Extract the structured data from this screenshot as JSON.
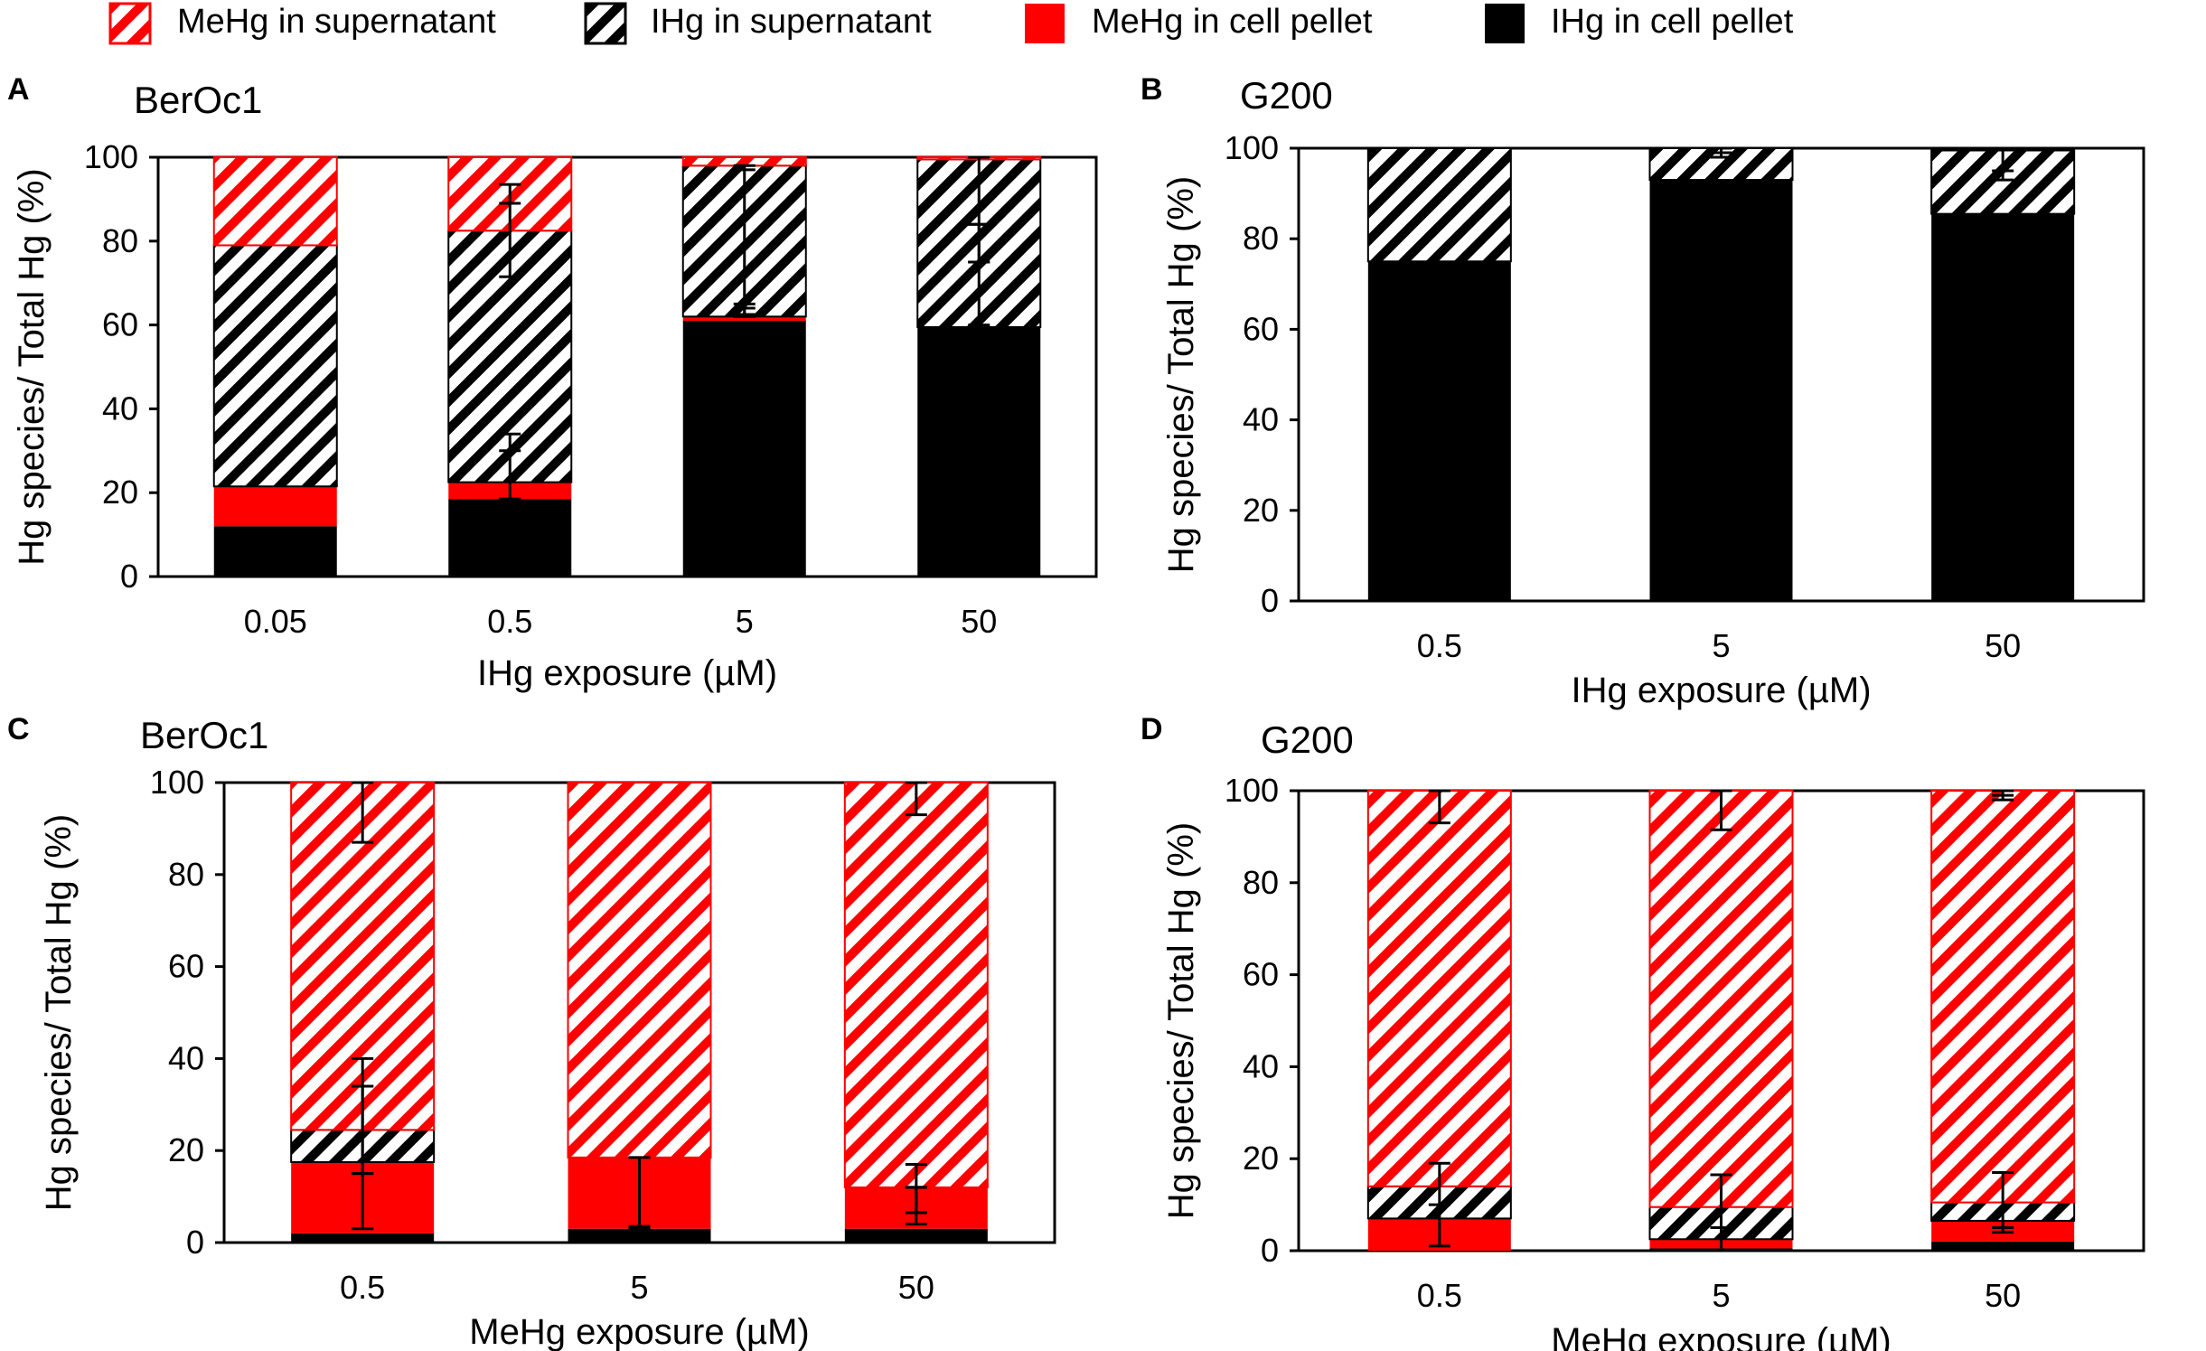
{
  "legend": [
    {
      "label": "MeHg in supernatant",
      "pattern": "red-hatch"
    },
    {
      "label": "IHg in supernatant",
      "pattern": "black-hatch"
    },
    {
      "label": "MeHg in cell pellet",
      "pattern": "solid-red"
    },
    {
      "label": "IHg in cell pellet",
      "pattern": "solid-black"
    }
  ],
  "colors": {
    "red": "#ff0000",
    "black": "#000000",
    "white": "#ffffff"
  },
  "chart_data": [
    {
      "panel": "A",
      "type": "bar",
      "stacked": true,
      "title": "BerOc1",
      "xlabel": "IHg exposure (µM)",
      "ylabel": "Hg species/ Total Hg (%)",
      "ylim": [
        0,
        100
      ],
      "yticks": [
        "0",
        "20",
        "40",
        "60",
        "80",
        "100"
      ],
      "categories": [
        "0.05",
        "0.5",
        "5",
        "50"
      ],
      "series": [
        {
          "name": "IHg in cell pellet",
          "values": [
            12,
            18.5,
            61,
            59.5
          ]
        },
        {
          "name": "MeHg in cell pellet",
          "values": [
            9.5,
            4,
            1,
            0
          ]
        },
        {
          "name": "IHg in supernatant",
          "values": [
            57.5,
            60,
            36,
            40
          ]
        },
        {
          "name": "MeHg in supernatant",
          "values": [
            21,
            17.5,
            2,
            0.5
          ]
        }
      ],
      "error_bars": [
        {
          "category": "0.5",
          "center": 30,
          "low": 18.5,
          "high": 34
        },
        {
          "category": "0.5",
          "center": 89,
          "low": 71.5,
          "high": 93.5
        },
        {
          "category": "5",
          "center": 64,
          "low": 62,
          "high": 65
        },
        {
          "category": "5",
          "center": 97,
          "low": 62.5,
          "high": 98
        },
        {
          "category": "50",
          "center": 75,
          "low": 60,
          "high": 84
        },
        {
          "category": "50",
          "center": 84,
          "low": 75,
          "high": 100
        }
      ]
    },
    {
      "panel": "B",
      "type": "bar",
      "stacked": true,
      "title": "G200",
      "xlabel": "IHg exposure (µM)",
      "ylabel": "Hg species/ Total Hg (%)",
      "ylim": [
        0,
        100
      ],
      "yticks": [
        "0",
        "20",
        "40",
        "60",
        "80",
        "100"
      ],
      "categories": [
        "0.5",
        "5",
        "50"
      ],
      "series": [
        {
          "name": "IHg in cell pellet",
          "values": [
            75,
            93,
            85.5
          ]
        },
        {
          "name": "MeHg in cell pellet",
          "values": [
            0,
            0,
            0
          ]
        },
        {
          "name": "IHg in supernatant",
          "values": [
            25,
            7,
            14
          ]
        },
        {
          "name": "MeHg in supernatant",
          "values": [
            0,
            0,
            0
          ]
        }
      ],
      "error_bars": [
        {
          "category": "5",
          "center": 99,
          "low": 98,
          "high": 100
        },
        {
          "category": "50",
          "center": 95,
          "low": 93,
          "high": 100
        }
      ]
    },
    {
      "panel": "C",
      "type": "bar",
      "stacked": true,
      "title": "BerOc1",
      "xlabel": "MeHg exposure (µM)",
      "ylabel": "Hg species/ Total Hg (%)",
      "ylim": [
        0,
        100
      ],
      "yticks": [
        "0",
        "20",
        "40",
        "60",
        "80",
        "100"
      ],
      "categories": [
        "0.5",
        "5",
        "50"
      ],
      "series": [
        {
          "name": "IHg in cell pellet",
          "values": [
            2,
            3,
            3
          ]
        },
        {
          "name": "MeHg in cell pellet",
          "values": [
            15.5,
            15.5,
            9
          ]
        },
        {
          "name": "IHg in supernatant",
          "values": [
            7,
            0,
            0
          ]
        },
        {
          "name": "MeHg in supernatant",
          "values": [
            75.5,
            81.5,
            88
          ]
        }
      ],
      "error_bars": [
        {
          "category": "0.5",
          "center": 15,
          "low": 3,
          "high": 34
        },
        {
          "category": "0.5",
          "center": 34,
          "low": 15,
          "high": 40
        },
        {
          "category": "0.5",
          "center": 100,
          "low": 87,
          "high": 100
        },
        {
          "category": "5",
          "center": 3.5,
          "low": 3,
          "high": 18.5
        },
        {
          "category": "50",
          "center": 6.5,
          "low": 6.5,
          "high": 12
        },
        {
          "category": "50",
          "center": 12,
          "low": 4,
          "high": 17
        },
        {
          "category": "50",
          "center": 100,
          "low": 93,
          "high": 100
        }
      ]
    },
    {
      "panel": "D",
      "type": "bar",
      "stacked": true,
      "title": "G200",
      "xlabel": "MeHg exposure (µM)",
      "ylabel": "Hg species/ Total Hg (%)",
      "ylim": [
        0,
        100
      ],
      "yticks": [
        "0",
        "20",
        "40",
        "60",
        "80",
        "100"
      ],
      "categories": [
        "0.5",
        "5",
        "50"
      ],
      "series": [
        {
          "name": "IHg in cell pellet",
          "values": [
            0,
            0.5,
            2
          ]
        },
        {
          "name": "MeHg in cell pellet",
          "values": [
            7,
            2,
            4.5
          ]
        },
        {
          "name": "IHg in supernatant",
          "values": [
            7,
            7,
            4
          ]
        },
        {
          "name": "MeHg in supernatant",
          "values": [
            86,
            90.5,
            89.5
          ]
        }
      ],
      "error_bars": [
        {
          "category": "0.5",
          "center": 10,
          "low": 1,
          "high": 19
        },
        {
          "category": "0.5",
          "center": 100,
          "low": 93,
          "high": 100
        },
        {
          "category": "5",
          "center": 5,
          "low": 0,
          "high": 16.5
        },
        {
          "category": "5",
          "center": 100,
          "low": 91.5,
          "high": 100
        },
        {
          "category": "50",
          "center": 5,
          "low": 4,
          "high": 17
        },
        {
          "category": "50",
          "center": 99,
          "low": 98,
          "high": 100
        }
      ]
    }
  ]
}
